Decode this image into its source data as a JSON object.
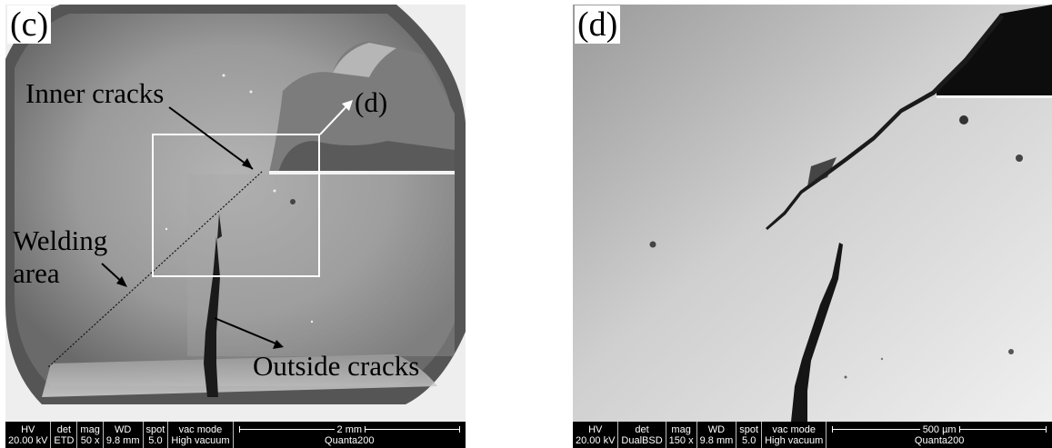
{
  "panel_c": {
    "label": "(c)",
    "annotations": {
      "inner_cracks": "Inner cracks",
      "ref_d": "(d)",
      "welding": "Welding",
      "area": "area",
      "outside_cracks": "Outside cracks"
    },
    "info_bar": {
      "hv_label": "HV",
      "hv_value": "20.00 kV",
      "det_label": "det",
      "det_value": "ETD",
      "mag_label": "mag",
      "mag_value": "50 x",
      "wd_label": "WD",
      "wd_value": "9.8 mm",
      "spot_label": "spot",
      "spot_value": "5.0",
      "vac_label": "vac mode",
      "vac_value": "High vacuum",
      "scale_label": "2 mm",
      "instrument": "Quanta200"
    }
  },
  "panel_d": {
    "label": "(d)",
    "info_bar": {
      "hv_label": "HV",
      "hv_value": "20.00 kV",
      "det_label": "det",
      "det_value": "DualBSD",
      "mag_label": "mag",
      "mag_value": "150 x",
      "wd_label": "WD",
      "wd_value": "9.8 mm",
      "spot_label": "spot",
      "spot_value": "5.0",
      "vac_label": "vac mode",
      "vac_value": "High vacuum",
      "scale_label": "500 µm",
      "instrument": "Quanta200"
    }
  },
  "colors": {
    "background": "#ffffff",
    "info_bar": "#000000",
    "annotation_text": "#000000",
    "box_outline": "#ffffff"
  }
}
